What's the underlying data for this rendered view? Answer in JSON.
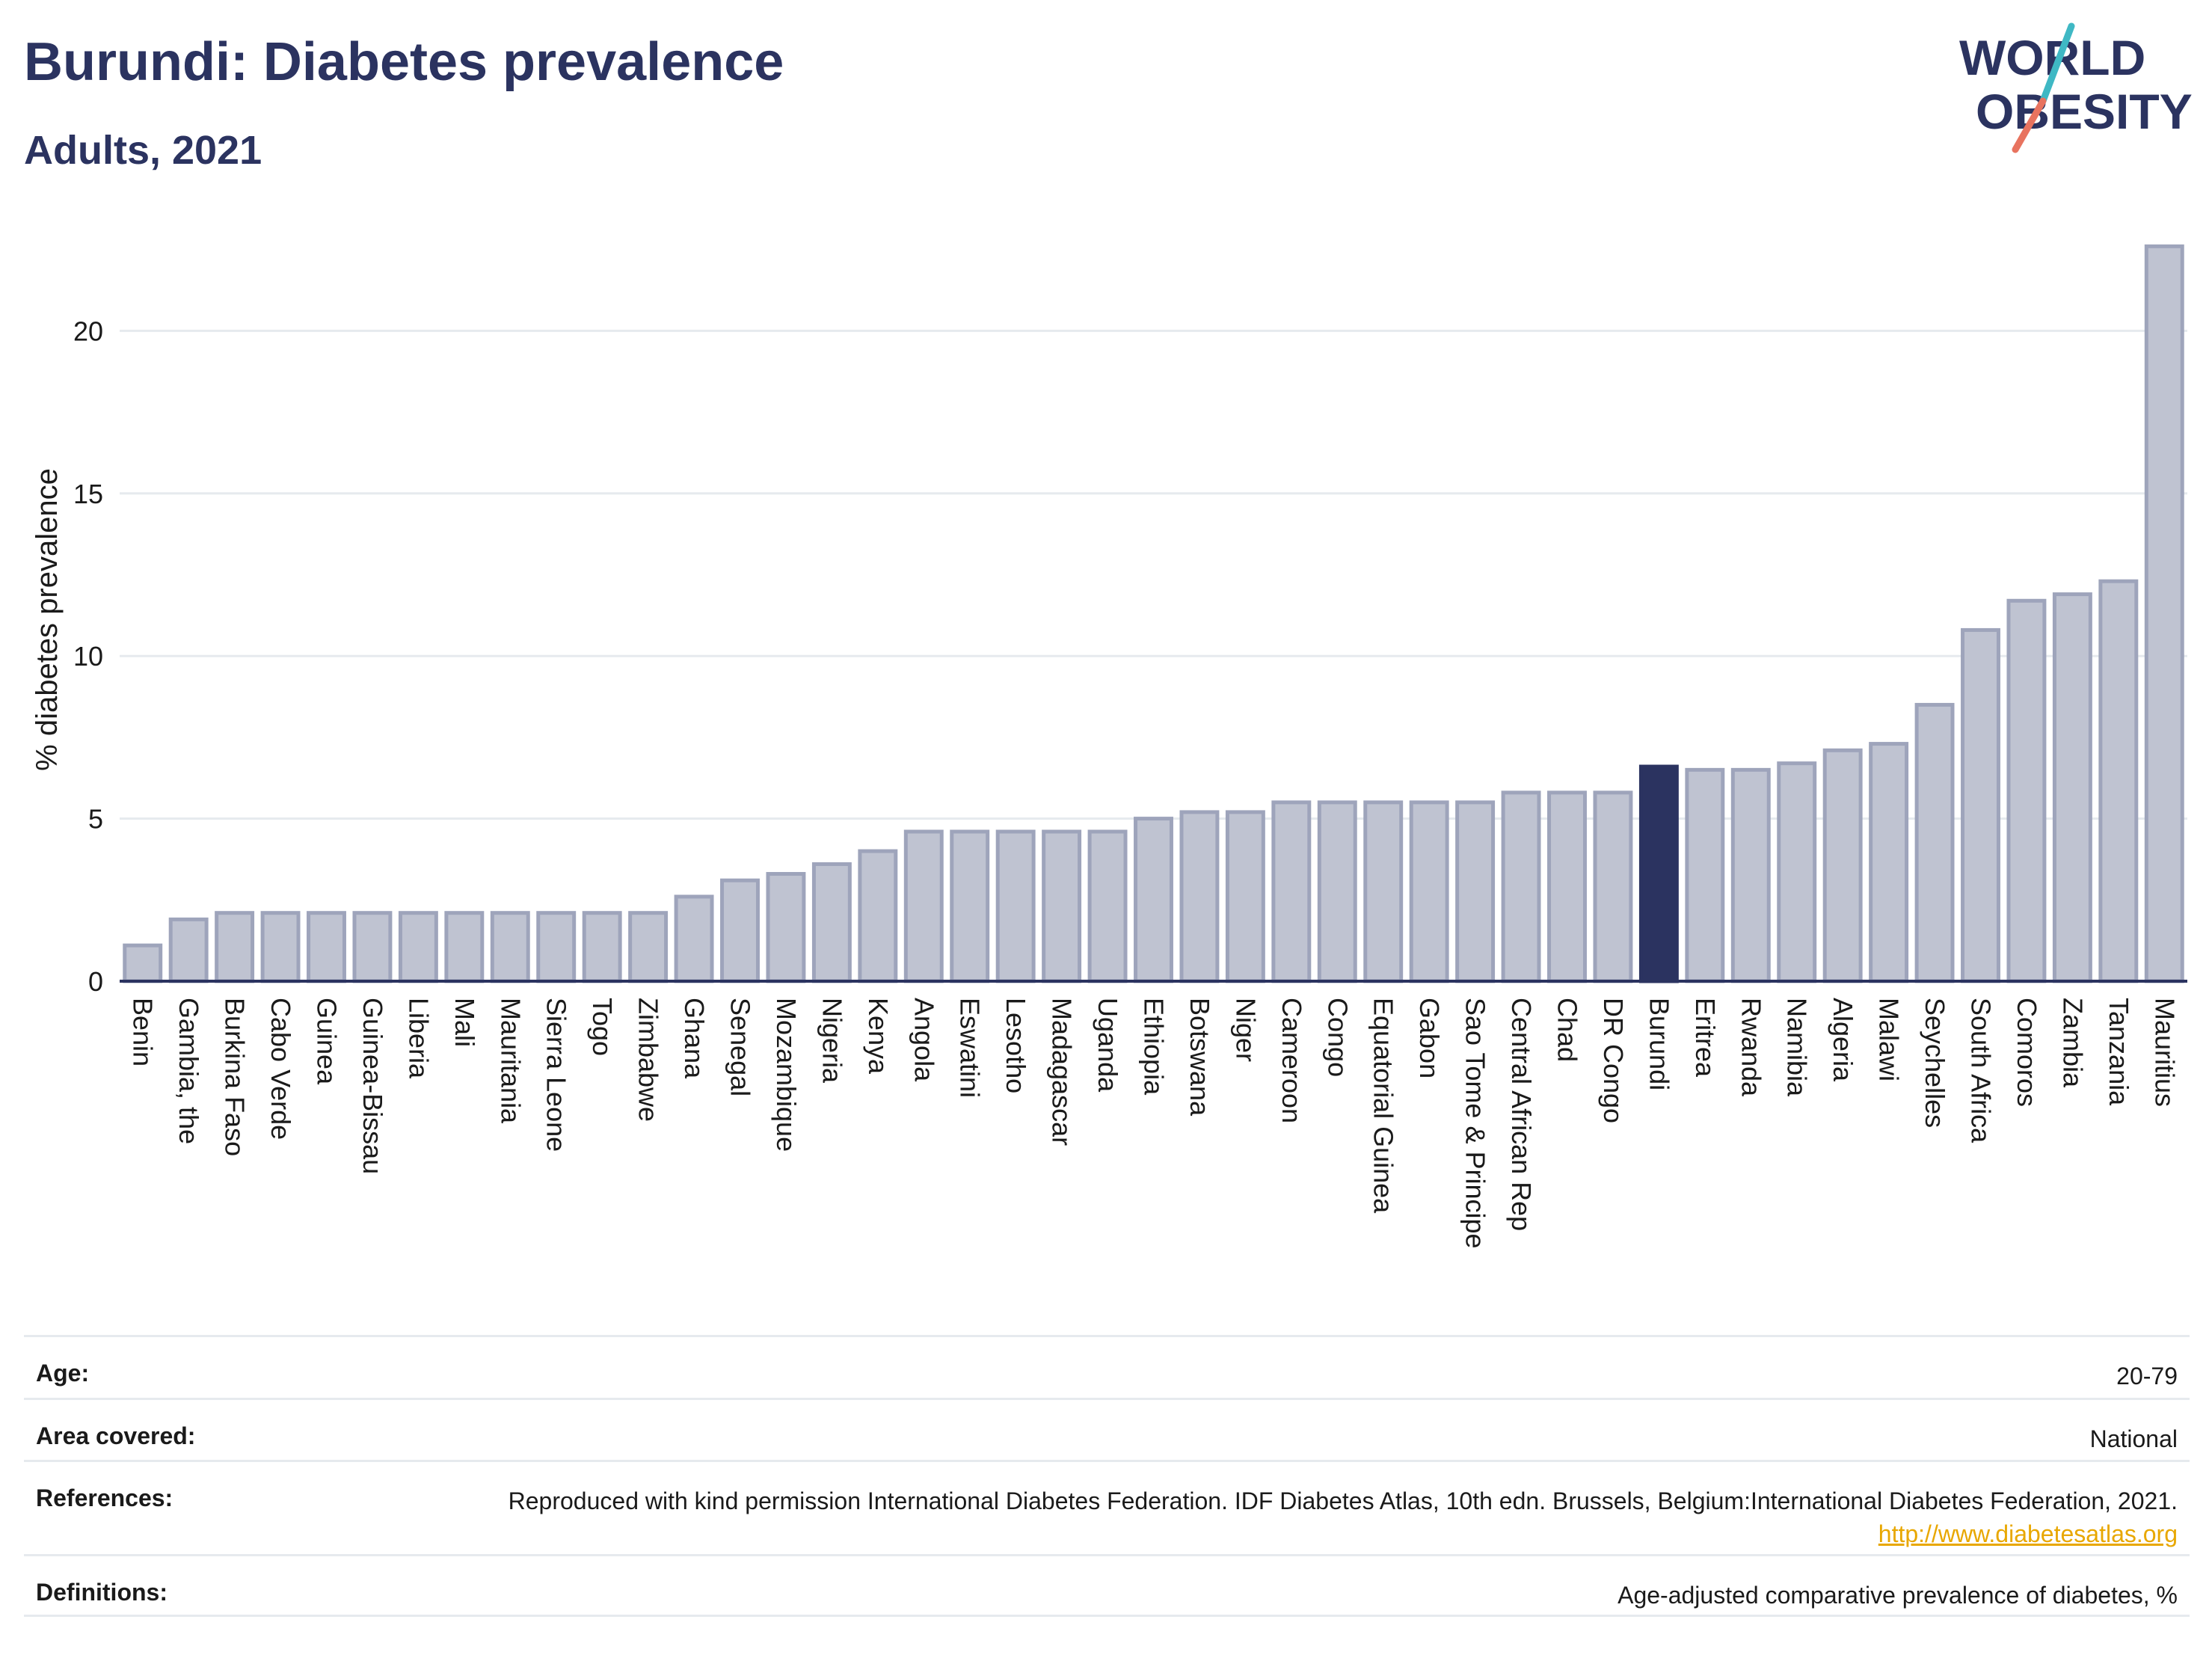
{
  "header": {
    "title": "Burundi: Diabetes prevalence",
    "subtitle": "Adults, 2021"
  },
  "logo": {
    "line1": "WORLD",
    "line2": "OBESITY",
    "accent_teal": "#3fb8c4",
    "accent_coral": "#e8735f",
    "color": "#2b3360"
  },
  "colors": {
    "bar_default": "#bfc3d1",
    "bar_default_stroke": "#9ea4bb",
    "bar_highlight": "#2b3360",
    "grid": "#e6eaee",
    "axis": "#2b3360"
  },
  "chart_data": {
    "type": "bar",
    "ylabel": "% diabetes prevalence",
    "ylim": [
      0,
      22.7
    ],
    "yticks": [
      0,
      5,
      10,
      15,
      20
    ],
    "grid": true,
    "highlight": "Burundi",
    "categories": [
      "Benin",
      "Gambia, the",
      "Burkina Faso",
      "Cabo Verde",
      "Guinea",
      "Guinea-Bissau",
      "Liberia",
      "Mali",
      "Mauritania",
      "Sierra Leone",
      "Togo",
      "Zimbabwe",
      "Ghana",
      "Senegal",
      "Mozambique",
      "Nigeria",
      "Kenya",
      "Angola",
      "Eswatini",
      "Lesotho",
      "Madagascar",
      "Uganda",
      "Ethiopia",
      "Botswana",
      "Niger",
      "Cameroon",
      "Congo",
      "Equatorial Guinea",
      "Gabon",
      "Sao Tome & Principe",
      "Central African Rep",
      "Chad",
      "DR Congo",
      "Burundi",
      "Eritrea",
      "Rwanda",
      "Namibia",
      "Algeria",
      "Malawi",
      "Seychelles",
      "South Africa",
      "Comoros",
      "Zambia",
      "Tanzania",
      "Mauritius"
    ],
    "values": [
      1.1,
      1.9,
      2.1,
      2.1,
      2.1,
      2.1,
      2.1,
      2.1,
      2.1,
      2.1,
      2.1,
      2.1,
      2.6,
      3.1,
      3.3,
      3.6,
      4.0,
      4.6,
      4.6,
      4.6,
      4.6,
      4.6,
      5.0,
      5.2,
      5.2,
      5.5,
      5.5,
      5.5,
      5.5,
      5.5,
      5.8,
      5.8,
      5.8,
      6.6,
      6.5,
      6.5,
      6.7,
      7.1,
      7.3,
      8.5,
      10.8,
      11.7,
      11.9,
      12.3,
      22.6
    ]
  },
  "meta": {
    "rows": [
      {
        "label": "Age:",
        "value": "20-79"
      },
      {
        "label": "Area covered:",
        "value": "National"
      },
      {
        "label": "References:",
        "value": "Reproduced with kind permission International Diabetes Federation.  IDF Diabetes Atlas, 10th edn. Brussels, Belgium:International Diabetes Federation, 2021.",
        "link": "http://www.diabetesatlas.org"
      },
      {
        "label": "Definitions:",
        "value": "Age-adjusted comparative prevalence of diabetes, %"
      }
    ]
  }
}
